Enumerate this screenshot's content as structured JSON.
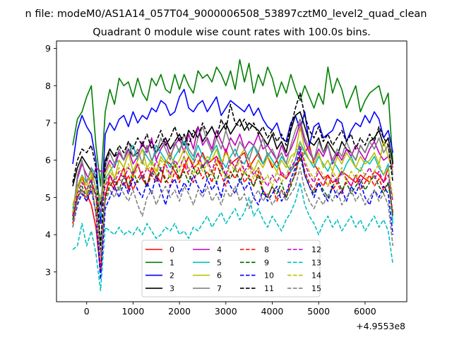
{
  "chart_data": {
    "type": "line",
    "suptitle": "n file: modeM0/AS1A14_057T04_9000006508_53897cztM0_level2_quad_clean",
    "title": "Quadrant 0 module wise count rates with 100.0s bins.",
    "xlabel": "",
    "ylabel": "",
    "x_offset_label": "+4.9553e8",
    "xlim": [
      -650,
      6900
    ],
    "ylim": [
      2.2,
      9.2
    ],
    "xticks": [
      0,
      1000,
      2000,
      3000,
      4000,
      5000,
      6000
    ],
    "xtick_labels": [
      "0",
      "1000",
      "2000",
      "3000",
      "4000",
      "5000",
      "6000"
    ],
    "yticks": [
      3,
      4,
      5,
      6,
      7,
      8,
      9
    ],
    "ytick_labels": [
      "3",
      "4",
      "5",
      "6",
      "7",
      "8",
      "9"
    ],
    "x_start": -300,
    "x_step": 100,
    "legend_location": "lower center",
    "series": [
      {
        "name": "0",
        "color": "#ff0000",
        "dash": "solid",
        "values": [
          4.6,
          5.2,
          5.6,
          5.1,
          4.8,
          4.2,
          3.0,
          5.0,
          5.6,
          5.3,
          5.5,
          5.8,
          5.2,
          5.6,
          5.9,
          5.5,
          5.3,
          5.8,
          5.6,
          5.4,
          6.0,
          5.9,
          5.7,
          5.5,
          5.8,
          6.1,
          5.8,
          5.9,
          6.2,
          5.9,
          6.0,
          6.1,
          5.8,
          6.3,
          5.9,
          6.0,
          6.1,
          6.2,
          5.8,
          6.0,
          6.2,
          5.9,
          6.1,
          5.8,
          6.0,
          5.6,
          5.5,
          5.7,
          5.9,
          6.0,
          6.2,
          6.4,
          5.9,
          5.7,
          5.5,
          5.6,
          5.4,
          5.5,
          5.7,
          5.6,
          5.5,
          5.4,
          5.6,
          5.5,
          5.4,
          5.7,
          5.6,
          5.4,
          5.8,
          5.9
        ]
      },
      {
        "name": "1",
        "color": "#008000",
        "dash": "solid",
        "values": [
          6.4,
          7.1,
          7.3,
          7.7,
          8.0,
          6.4,
          5.3,
          7.3,
          7.9,
          7.5,
          8.2,
          8.0,
          8.1,
          7.7,
          8.2,
          7.8,
          7.6,
          8.2,
          8.0,
          8.3,
          7.9,
          7.8,
          8.3,
          7.9,
          8.3,
          8.0,
          7.8,
          8.4,
          8.2,
          8.3,
          8.1,
          8.5,
          8.3,
          8.0,
          8.4,
          7.9,
          8.7,
          8.1,
          8.6,
          7.8,
          8.3,
          8.0,
          8.5,
          8.2,
          7.7,
          8.1,
          7.8,
          8.3,
          7.9,
          7.6,
          8.0,
          7.7,
          7.4,
          7.8,
          7.5,
          8.5,
          7.8,
          8.2,
          7.9,
          7.4,
          7.7,
          8.0,
          7.3,
          7.6,
          7.8,
          7.9,
          8.0,
          7.5,
          7.8,
          5.9
        ]
      },
      {
        "name": "2",
        "color": "#0000ff",
        "dash": "solid",
        "values": [
          5.9,
          6.8,
          7.2,
          6.9,
          6.7,
          6.0,
          4.3,
          6.7,
          7.0,
          6.8,
          7.1,
          7.2,
          6.9,
          7.3,
          7.0,
          7.2,
          7.1,
          7.4,
          7.3,
          7.6,
          7.5,
          7.2,
          7.3,
          7.7,
          7.9,
          7.4,
          7.3,
          7.5,
          7.6,
          7.3,
          7.5,
          7.7,
          7.2,
          7.4,
          7.6,
          7.5,
          7.4,
          7.3,
          7.5,
          7.2,
          7.4,
          7.1,
          6.9,
          6.8,
          7.0,
          6.6,
          6.5,
          7.0,
          7.2,
          6.8,
          7.3,
          6.4,
          6.9,
          7.0,
          6.6,
          6.7,
          6.8,
          7.1,
          7.0,
          6.5,
          6.8,
          7.0,
          6.9,
          7.2,
          7.0,
          7.3,
          7.1,
          6.6,
          6.8,
          6.2
        ]
      },
      {
        "name": "3",
        "color": "#000000",
        "dash": "solid",
        "values": [
          5.3,
          5.8,
          6.1,
          5.9,
          5.7,
          5.5,
          4.8,
          6.0,
          6.3,
          6.1,
          6.2,
          6.0,
          6.3,
          6.1,
          6.2,
          6.4,
          6.3,
          6.5,
          6.2,
          6.4,
          6.6,
          6.3,
          6.5,
          6.7,
          6.4,
          6.8,
          6.6,
          6.9,
          6.5,
          6.7,
          6.9,
          6.6,
          6.8,
          7.0,
          6.7,
          6.9,
          7.1,
          6.8,
          7.0,
          6.9,
          6.8,
          6.6,
          6.4,
          6.7,
          6.3,
          6.5,
          6.2,
          6.8,
          7.2,
          7.3,
          6.9,
          6.5,
          6.4,
          6.6,
          6.2,
          6.5,
          6.3,
          6.1,
          6.5,
          6.3,
          6.2,
          6.0,
          6.4,
          6.2,
          6.5,
          6.6,
          6.8,
          6.4,
          6.6,
          5.9
        ]
      },
      {
        "name": "4",
        "color": "#bf00bf",
        "dash": "solid",
        "values": [
          4.5,
          5.5,
          5.9,
          5.6,
          5.4,
          5.8,
          5.7,
          5.7,
          6.0,
          5.8,
          6.2,
          6.0,
          6.3,
          5.9,
          6.1,
          6.5,
          6.2,
          6.6,
          6.0,
          6.3,
          6.5,
          6.1,
          6.4,
          6.6,
          6.2,
          6.7,
          6.3,
          6.9,
          6.4,
          6.6,
          6.3,
          6.8,
          6.5,
          6.2,
          6.6,
          6.4,
          6.7,
          6.3,
          6.5,
          6.4,
          6.7,
          6.3,
          6.4,
          6.2,
          6.0,
          6.4,
          6.1,
          6.3,
          6.6,
          7.0,
          6.5,
          6.2,
          6.0,
          6.3,
          6.1,
          6.4,
          5.9,
          6.2,
          6.0,
          6.3,
          6.1,
          6.4,
          6.2,
          6.0,
          6.3,
          6.5,
          6.2,
          6.0,
          6.1,
          5.8
        ]
      },
      {
        "name": "5",
        "color": "#00bfbf",
        "dash": "solid",
        "values": [
          4.7,
          5.3,
          5.6,
          5.4,
          5.8,
          5.6,
          4.5,
          5.5,
          5.7,
          5.9,
          6.0,
          5.8,
          6.2,
          6.4,
          6.0,
          6.3,
          6.1,
          5.9,
          6.4,
          6.2,
          6.0,
          5.8,
          6.1,
          6.3,
          6.5,
          6.2,
          6.0,
          6.4,
          6.1,
          5.9,
          6.2,
          6.4,
          6.0,
          5.8,
          6.1,
          6.3,
          6.0,
          5.9,
          6.2,
          6.4,
          6.1,
          5.9,
          6.2,
          6.0,
          5.8,
          6.1,
          5.9,
          5.7,
          6.0,
          6.5,
          6.2,
          6.0,
          5.8,
          6.1,
          5.9,
          5.7,
          6.0,
          5.8,
          5.6,
          5.9,
          6.1,
          5.8,
          5.7,
          6.0,
          5.9,
          6.1,
          5.8,
          5.6,
          5.9,
          4.3
        ]
      },
      {
        "name": "6",
        "color": "#bfbf00",
        "dash": "solid",
        "values": [
          4.8,
          5.2,
          5.5,
          5.1,
          5.6,
          4.5,
          5.0,
          5.6,
          5.9,
          5.5,
          6.0,
          5.8,
          6.2,
          5.7,
          6.0,
          6.3,
          5.8,
          6.0,
          5.7,
          6.1,
          5.9,
          6.2,
          5.8,
          6.0,
          6.3,
          6.1,
          5.9,
          6.2,
          5.8,
          6.1,
          6.0,
          6.3,
          5.9,
          6.2,
          6.0,
          5.8,
          6.1,
          6.3,
          6.0,
          5.7,
          6.0,
          5.8,
          6.1,
          5.9,
          5.7,
          6.0,
          5.8,
          6.1,
          6.2,
          6.9,
          6.3,
          6.0,
          5.9,
          6.2,
          5.8,
          6.0,
          5.7,
          6.1,
          5.9,
          6.2,
          6.0,
          5.8,
          6.1,
          5.9,
          6.0,
          6.2,
          5.9,
          6.5,
          6.1,
          5.7
        ]
      },
      {
        "name": "7",
        "color": "#808080",
        "dash": "solid",
        "values": [
          4.5,
          5.6,
          6.0,
          5.4,
          5.8,
          5.2,
          4.9,
          5.8,
          6.2,
          5.9,
          6.3,
          6.0,
          6.5,
          6.1,
          6.3,
          5.9,
          6.4,
          6.0,
          6.2,
          6.6,
          6.3,
          6.0,
          6.5,
          6.2,
          6.7,
          6.3,
          6.1,
          6.6,
          6.9,
          6.5,
          6.2,
          6.6,
          6.3,
          6.8,
          6.4,
          6.1,
          6.5,
          6.3,
          6.0,
          6.4,
          6.2,
          6.6,
          6.1,
          6.3,
          6.0,
          6.2,
          5.9,
          6.4,
          6.8,
          7.1,
          6.6,
          6.3,
          6.0,
          6.5,
          6.2,
          6.4,
          6.0,
          6.3,
          6.1,
          6.5,
          6.2,
          6.0,
          6.4,
          6.2,
          6.5,
          6.3,
          6.6,
          6.2,
          6.4,
          5.6
        ]
      },
      {
        "name": "8",
        "color": "#ff0000",
        "dash": "dashed",
        "values": [
          4.3,
          5.0,
          5.2,
          4.9,
          5.3,
          5.1,
          3.0,
          5.1,
          5.4,
          5.2,
          5.5,
          5.3,
          5.6,
          5.2,
          5.5,
          5.7,
          5.3,
          5.6,
          5.4,
          5.8,
          5.5,
          5.3,
          5.7,
          5.4,
          5.9,
          5.6,
          5.4,
          5.8,
          5.5,
          5.7,
          5.4,
          5.9,
          5.6,
          5.3,
          5.7,
          5.5,
          5.8,
          5.4,
          5.6,
          5.3,
          5.7,
          5.2,
          5.0,
          5.3,
          4.9,
          5.2,
          5.0,
          5.4,
          5.6,
          6.2,
          5.7,
          5.4,
          5.2,
          5.5,
          5.3,
          5.6,
          5.2,
          5.4,
          5.1,
          5.5,
          5.3,
          5.6,
          5.2,
          5.4,
          5.6,
          5.3,
          5.5,
          5.2,
          5.4,
          4.6
        ]
      },
      {
        "name": "9",
        "color": "#006400",
        "dash": "dashed",
        "values": [
          4.4,
          5.0,
          5.3,
          5.0,
          5.4,
          5.1,
          3.8,
          5.0,
          5.3,
          5.5,
          5.2,
          5.6,
          5.3,
          5.7,
          5.4,
          5.6,
          5.3,
          5.7,
          5.5,
          5.8,
          5.4,
          5.6,
          5.9,
          5.5,
          5.7,
          5.4,
          5.8,
          5.6,
          5.9,
          5.5,
          5.7,
          5.4,
          5.8,
          5.6,
          5.5,
          5.8,
          5.4,
          5.7,
          5.5,
          5.3,
          5.6,
          5.1,
          5.0,
          5.3,
          5.1,
          5.4,
          5.0,
          5.3,
          5.7,
          6.1,
          5.6,
          5.3,
          5.1,
          5.4,
          5.2,
          5.0,
          5.3,
          5.5,
          5.2,
          5.4,
          5.1,
          5.3,
          5.5,
          5.2,
          5.4,
          5.6,
          5.3,
          5.1,
          5.4,
          4.5
        ]
      },
      {
        "name": "10",
        "color": "#0000ff",
        "dash": "dashed",
        "values": [
          4.2,
          4.8,
          5.1,
          4.9,
          5.2,
          4.6,
          2.8,
          4.7,
          5.0,
          5.3,
          5.0,
          5.4,
          5.1,
          5.5,
          5.2,
          5.0,
          5.4,
          5.1,
          5.6,
          5.2,
          4.8,
          5.3,
          5.5,
          5.1,
          5.4,
          5.2,
          5.6,
          5.3,
          5.1,
          5.5,
          5.2,
          5.4,
          5.0,
          5.6,
          5.3,
          5.1,
          5.5,
          5.2,
          5.4,
          5.0,
          4.8,
          5.2,
          4.9,
          5.1,
          5.3,
          4.9,
          5.1,
          5.5,
          5.8,
          6.3,
          5.6,
          5.3,
          5.0,
          5.4,
          5.1,
          4.9,
          5.3,
          5.0,
          5.2,
          4.9,
          5.3,
          5.1,
          5.4,
          5.0,
          4.8,
          5.2,
          5.0,
          5.3,
          5.1,
          4.0
        ]
      },
      {
        "name": "11",
        "color": "#000000",
        "dash": "dashed",
        "values": [
          5.4,
          6.0,
          6.3,
          6.2,
          6.4,
          5.8,
          3.6,
          5.9,
          6.3,
          6.1,
          6.4,
          6.2,
          6.5,
          6.3,
          6.6,
          6.4,
          6.7,
          6.3,
          6.5,
          6.8,
          6.4,
          6.6,
          6.9,
          6.5,
          6.7,
          6.4,
          6.8,
          6.6,
          7.0,
          6.7,
          6.9,
          6.6,
          7.1,
          6.8,
          7.5,
          7.0,
          6.9,
          7.1,
          6.8,
          7.0,
          6.7,
          6.9,
          6.6,
          6.8,
          6.5,
          6.7,
          6.4,
          6.9,
          7.4,
          7.8,
          7.2,
          6.8,
          6.6,
          6.9,
          6.5,
          6.7,
          6.4,
          6.6,
          6.8,
          6.5,
          6.7,
          6.3,
          6.6,
          6.4,
          6.7,
          6.5,
          6.9,
          6.6,
          6.4,
          5.4
        ]
      },
      {
        "name": "12",
        "color": "#bf00bf",
        "dash": "dashed",
        "values": [
          4.5,
          5.1,
          5.4,
          5.2,
          5.5,
          5.0,
          4.6,
          5.3,
          5.6,
          5.4,
          5.7,
          5.5,
          5.8,
          5.6,
          5.9,
          5.5,
          5.8,
          5.6,
          6.0,
          5.7,
          5.9,
          5.6,
          6.0,
          5.8,
          6.1,
          5.7,
          5.9,
          6.2,
          5.8,
          6.0,
          5.7,
          6.1,
          5.9,
          5.6,
          6.0,
          5.8,
          6.1,
          5.7,
          5.9,
          5.6,
          5.8,
          5.5,
          5.3,
          5.6,
          5.4,
          5.7,
          5.5,
          5.8,
          6.0,
          6.4,
          5.9,
          5.6,
          5.4,
          5.7,
          5.5,
          5.3,
          5.6,
          5.4,
          5.7,
          5.5,
          5.3,
          5.6,
          5.4,
          5.6,
          5.8,
          5.5,
          5.7,
          5.4,
          5.6,
          4.9
        ]
      },
      {
        "name": "13",
        "color": "#00bfbf",
        "dash": "dashed",
        "values": [
          3.6,
          3.7,
          4.3,
          3.7,
          4.1,
          3.5,
          2.5,
          4.2,
          4.1,
          4.0,
          4.2,
          4.0,
          4.1,
          4.0,
          4.2,
          4.0,
          4.3,
          4.1,
          3.9,
          4.0,
          4.2,
          4.1,
          4.3,
          4.0,
          4.1,
          3.9,
          4.2,
          4.1,
          4.3,
          4.5,
          4.2,
          4.4,
          4.6,
          4.3,
          4.5,
          4.7,
          4.4,
          4.6,
          5.0,
          4.5,
          4.7,
          4.4,
          4.2,
          4.5,
          4.3,
          4.1,
          4.4,
          4.6,
          4.9,
          5.4,
          4.8,
          4.5,
          4.3,
          4.0,
          4.3,
          4.5,
          4.2,
          4.4,
          4.1,
          4.3,
          4.5,
          4.2,
          4.4,
          4.1,
          4.3,
          4.5,
          4.2,
          4.4,
          4.1,
          3.2
        ]
      },
      {
        "name": "14",
        "color": "#bfbf00",
        "dash": "dashed",
        "values": [
          4.6,
          5.3,
          5.6,
          5.3,
          5.7,
          5.2,
          4.9,
          5.4,
          5.7,
          5.5,
          5.8,
          5.6,
          5.9,
          5.5,
          5.8,
          6.0,
          5.7,
          5.9,
          5.6,
          6.0,
          5.8,
          5.5,
          5.9,
          5.7,
          6.1,
          5.8,
          5.6,
          6.0,
          5.7,
          5.9,
          5.6,
          6.0,
          5.8,
          5.5,
          5.9,
          5.7,
          6.0,
          5.6,
          5.8,
          5.5,
          5.8,
          5.4,
          5.6,
          5.3,
          5.7,
          5.4,
          5.6,
          5.9,
          6.2,
          6.5,
          6.0,
          5.7,
          5.5,
          5.8,
          5.6,
          5.3,
          5.7,
          5.5,
          5.8,
          5.4,
          5.7,
          5.5,
          5.8,
          5.6,
          5.4,
          5.7,
          5.9,
          5.6,
          5.8,
          5.0
        ]
      },
      {
        "name": "15",
        "color": "#808080",
        "dash": "dashed",
        "values": [
          4.2,
          4.9,
          5.2,
          5.0,
          5.3,
          4.6,
          3.4,
          4.9,
          5.2,
          5.0,
          5.3,
          5.1,
          4.9,
          5.2,
          4.8,
          4.5,
          5.0,
          5.2,
          4.8,
          5.1,
          5.3,
          5.0,
          5.2,
          4.9,
          5.3,
          5.1,
          4.8,
          5.2,
          5.0,
          5.3,
          4.9,
          5.1,
          4.8,
          5.2,
          5.0,
          5.3,
          4.9,
          5.1,
          4.7,
          5.0,
          5.2,
          4.9,
          5.1,
          4.8,
          5.0,
          5.2,
          4.9,
          5.1,
          5.3,
          5.8,
          5.2,
          4.9,
          4.7,
          5.0,
          4.8,
          5.1,
          4.9,
          5.2,
          4.8,
          5.0,
          5.2,
          4.9,
          5.1,
          4.8,
          5.0,
          5.2,
          4.9,
          5.1,
          4.8,
          3.7
        ]
      }
    ]
  }
}
